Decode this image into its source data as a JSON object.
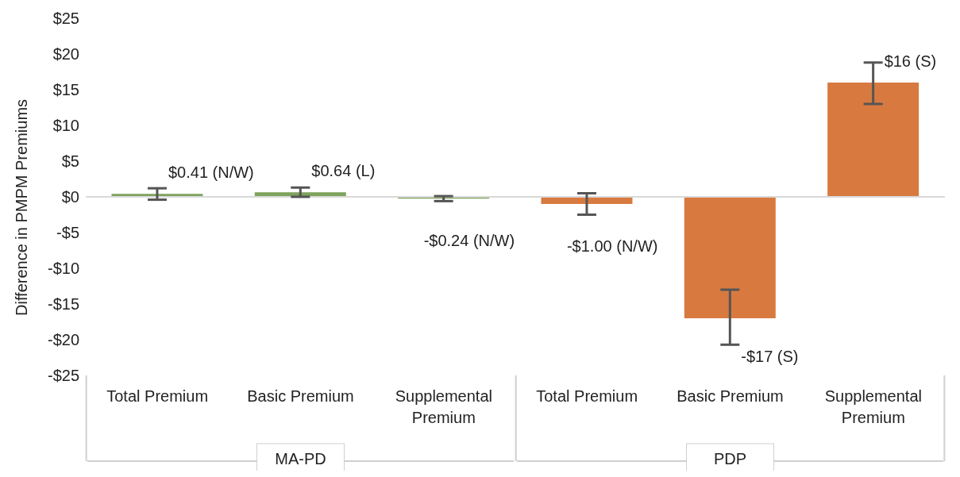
{
  "chart_data": {
    "type": "bar",
    "ylabel": "Difference in PMPM Premiums",
    "categories": [
      "Total Premium",
      "Basic Premium",
      "Supplemental Premium",
      "Total Premium",
      "Basic Premium",
      "Supplemental Premium"
    ],
    "values": [
      0.41,
      0.64,
      -0.24,
      -1.0,
      -17,
      16
    ],
    "colors": [
      "#7ea35c",
      "#7ea35c",
      "#7ea35c",
      "#d87a40",
      "#d87a40",
      "#d87a40"
    ],
    "errors": [
      [
        -0.4,
        1.2
      ],
      [
        0,
        1.3
      ],
      [
        -0.6,
        0.1
      ],
      [
        -2.5,
        0.5
      ],
      [
        -20.7,
        -13
      ],
      [
        13,
        18.8
      ]
    ],
    "value_labels": [
      "$0.41 (N/W)",
      "$0.64 (L)",
      "-$0.24 (N/W)",
      "-$1.00 (N/W)",
      "-$17 (S)",
      "$16 (S)"
    ],
    "annotations": [
      "MA-PD",
      "PDP"
    ],
    "ylim": [
      -25,
      25
    ],
    "yticks": [
      {
        "value": -25,
        "label": "-$25"
      },
      {
        "value": -20,
        "label": "-$20"
      },
      {
        "value": -15,
        "label": "-$15"
      },
      {
        "value": -10,
        "label": "-$10"
      },
      {
        "value": -5,
        "label": "-$5"
      },
      {
        "value": 0,
        "label": "$0"
      },
      {
        "value": 5,
        "label": "$5"
      },
      {
        "value": 10,
        "label": "$10"
      },
      {
        "value": 15,
        "label": "$15"
      },
      {
        "value": 20,
        "label": "$20"
      },
      {
        "value": 25,
        "label": "$25"
      }
    ],
    "ref_lines": [
      {
        "axis": "y",
        "value": 0,
        "color": "#d9d9d9"
      }
    ]
  }
}
